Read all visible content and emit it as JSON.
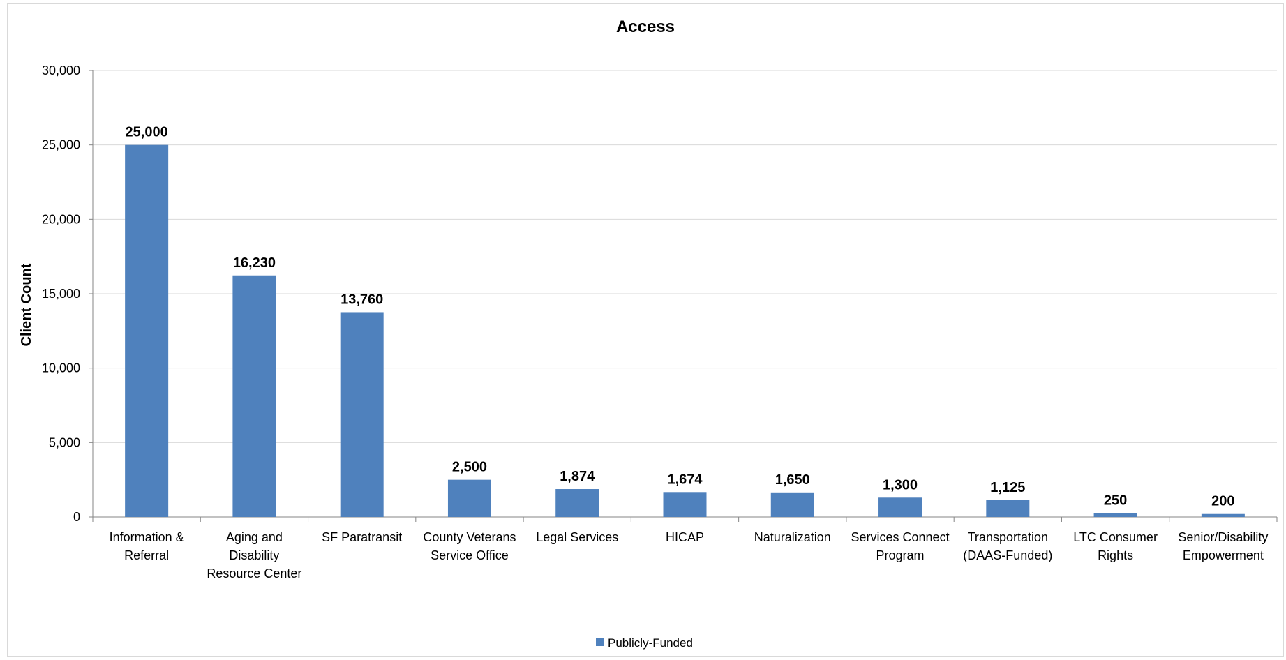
{
  "chart_data": {
    "type": "bar",
    "title": "Access",
    "xlabel": "",
    "ylabel": "Client Count",
    "ylim": [
      0,
      30000
    ],
    "yticks": [
      "0",
      "5,000",
      "10,000",
      "15,000",
      "20,000",
      "25,000",
      "30,000"
    ],
    "ytick_values": [
      0,
      5000,
      10000,
      15000,
      20000,
      25000,
      30000
    ],
    "grid": true,
    "legend_position": "bottom",
    "categories": [
      [
        "Information &",
        "Referral"
      ],
      [
        "Aging and",
        "Disability",
        "Resource Center"
      ],
      [
        "SF Paratransit"
      ],
      [
        "County Veterans",
        "Service Office"
      ],
      [
        "Legal Services"
      ],
      [
        "HICAP"
      ],
      [
        "Naturalization"
      ],
      [
        "Services Connect",
        "Program"
      ],
      [
        "Transportation",
        "(DAAS-Funded)"
      ],
      [
        "LTC Consumer",
        "Rights"
      ],
      [
        "Senior/Disability",
        "Empowerment"
      ]
    ],
    "series": [
      {
        "name": "Publicly-Funded",
        "color": "#4f81bd",
        "values": [
          25000,
          16230,
          13760,
          2500,
          1874,
          1674,
          1650,
          1300,
          1125,
          250,
          200
        ],
        "labels": [
          "25,000",
          "16,230",
          "13,760",
          "2,500",
          "1,874",
          "1,674",
          "1,650",
          "1,300",
          "1,125",
          "250",
          "200"
        ]
      }
    ]
  }
}
